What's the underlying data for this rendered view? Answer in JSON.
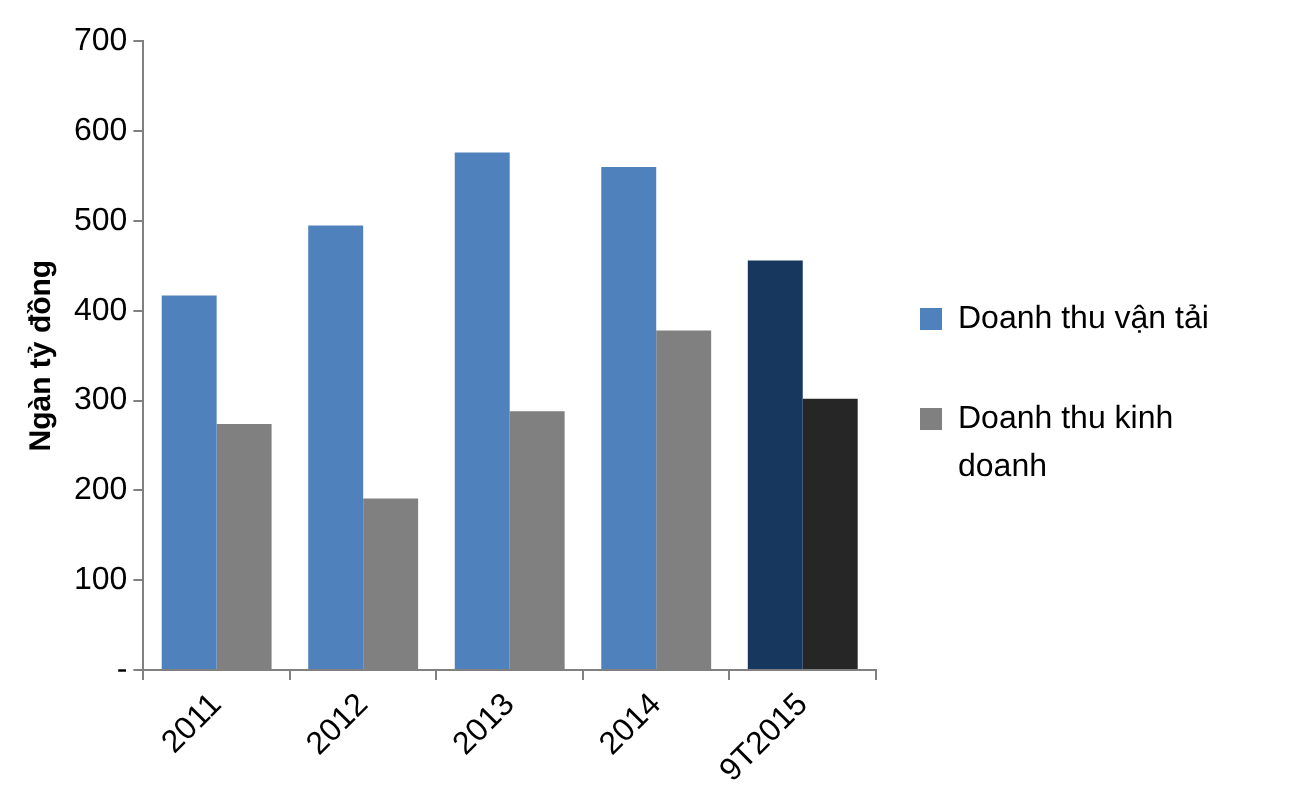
{
  "chart_data": {
    "type": "bar",
    "ylabel": "Ngàn tỷ đồng",
    "categories": [
      "2011",
      "2012",
      "2013",
      "2014",
      "9T2015"
    ],
    "series": [
      {
        "name": "Doanh thu vận tải",
        "color": "#4f81bd",
        "colors": [
          "#4f81bd",
          "#4f81bd",
          "#4f81bd",
          "#4f81bd",
          "#17375e"
        ],
        "values": [
          417,
          495,
          576,
          560,
          456
        ]
      },
      {
        "name": "Doanh thu kinh doanh",
        "color": "#808080",
        "colors": [
          "#808080",
          "#808080",
          "#808080",
          "#808080",
          "#262626"
        ],
        "values": [
          274,
          191,
          288,
          378,
          302
        ]
      }
    ],
    "ylim": [
      0,
      700
    ],
    "yticks": [
      {
        "value": 0,
        "label": "-"
      },
      100,
      200,
      300,
      400,
      500,
      600,
      700
    ],
    "legend": "right",
    "grid": false
  }
}
